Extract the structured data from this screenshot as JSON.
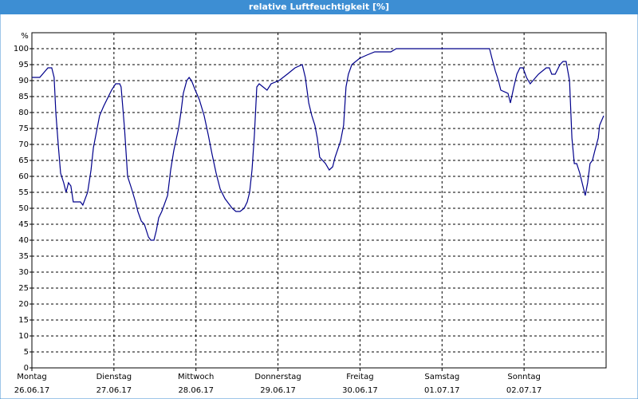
{
  "chart_data": {
    "type": "line",
    "title": "relative Luftfeuchtigkeit [%]",
    "y_unit": "%",
    "x": [
      0,
      2.3,
      4.7,
      5.8,
      6.5,
      7,
      7.7,
      8.4,
      9.3,
      10,
      10.7,
      11.4,
      12.1,
      14.2,
      14.9,
      16.3,
      17.3,
      18,
      18.9,
      19.8,
      21,
      23.3,
      24.5,
      25.7,
      26.1,
      27.1,
      28,
      29.2,
      30.3,
      31,
      32,
      32.9,
      34.1,
      34.8,
      35.7,
      36.4,
      37.1,
      38,
      39.7,
      40.6,
      41.5,
      42.9,
      43.6,
      44.3,
      45.3,
      46,
      46.7,
      47.8,
      49,
      50.4,
      51.6,
      52.7,
      53.9,
      55.1,
      56.5,
      58.6,
      59.7,
      60.9,
      62.1,
      63,
      63.7,
      64.4,
      65.1,
      65.8,
      66.5,
      68.8,
      70,
      72.3,
      74.7,
      77,
      79.1,
      80,
      81,
      81.9,
      82.8,
      83.5,
      84.2,
      85.9,
      87,
      88,
      88.7,
      90.3,
      91.2,
      91.9,
      92.6,
      93.6,
      95.9,
      98,
      100.3,
      105,
      106.6,
      133.9,
      134.6,
      135.6,
      136.5,
      137.2,
      139.3,
      140,
      141,
      141.9,
      142.8,
      143.7,
      144.7,
      145.8,
      148.2,
      150.5,
      151.4,
      152.1,
      153.1,
      154.5,
      155.4,
      156.3,
      157.3,
      158,
      158.7,
      159.4,
      160.3,
      161.9,
      162.6,
      163.3,
      164,
      164.7,
      165.7,
      166.1,
      167.3
    ],
    "series": [
      {
        "name": "relative Luftfeuchtigkeit",
        "color": "#00008b",
        "values": [
          91,
          91,
          94,
          94,
          91,
          80,
          70,
          61,
          58,
          55,
          58,
          57,
          52,
          52,
          51,
          55,
          62,
          69,
          74,
          79,
          82,
          87,
          89,
          89,
          88,
          75,
          60,
          56,
          52,
          49,
          46,
          45,
          41,
          40,
          40,
          43,
          47,
          49,
          54,
          62,
          68,
          75,
          80,
          86,
          90,
          91,
          90,
          87,
          84,
          79,
          73,
          67,
          61,
          56,
          53,
          50,
          49,
          49,
          50,
          52,
          55,
          62,
          73,
          88,
          89,
          87,
          89,
          90,
          92,
          94,
          95,
          91,
          83,
          79,
          76,
          72,
          66,
          64,
          62,
          63,
          66,
          71,
          76,
          88,
          92,
          95,
          97,
          98,
          99,
          99,
          100,
          100,
          97,
          93,
          90,
          87,
          86,
          83,
          88,
          92,
          94,
          94,
          91,
          89,
          92,
          94,
          94,
          92,
          92,
          95,
          96,
          96,
          90,
          72,
          64,
          64,
          61,
          54,
          58,
          64,
          65,
          68,
          72,
          76,
          79
        ]
      }
    ],
    "xlim": [
      0,
      168
    ],
    "xticks": [
      {
        "value": 0,
        "label": "Montag",
        "date": "26.06.17"
      },
      {
        "value": 24,
        "label": "Dienstag",
        "date": "27.06.17"
      },
      {
        "value": 48,
        "label": "Mittwoch",
        "date": "28.06.17"
      },
      {
        "value": 72,
        "label": "Donnerstag",
        "date": "29.06.17"
      },
      {
        "value": 96,
        "label": "Freitag",
        "date": "30.06.17"
      },
      {
        "value": 120,
        "label": "Samstag",
        "date": "01.07.17"
      },
      {
        "value": 144,
        "label": "Sonntag",
        "date": "02.07.17"
      }
    ],
    "ylim": [
      0,
      105
    ],
    "yticks": [
      0,
      5,
      10,
      15,
      20,
      25,
      30,
      35,
      40,
      45,
      50,
      55,
      60,
      65,
      70,
      75,
      80,
      85,
      90,
      95,
      100
    ],
    "grid": true
  }
}
